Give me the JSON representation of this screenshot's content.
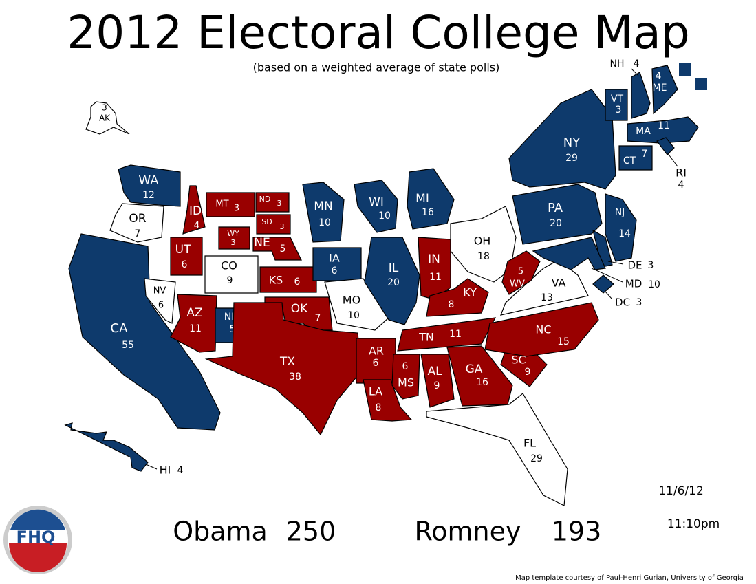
{
  "header": {
    "title": "2012 Electoral College Map",
    "subtitle": "(based on a weighted average of state polls)"
  },
  "states": [
    {
      "abbr": "WA",
      "votes": 12,
      "color": "#0e3a6c"
    },
    {
      "abbr": "OR",
      "votes": 7,
      "color": "#ffffff"
    },
    {
      "abbr": "CA",
      "votes": 55,
      "color": "#0e3a6c"
    },
    {
      "abbr": "NV",
      "votes": 6,
      "color": "#ffffff"
    },
    {
      "abbr": "ID",
      "votes": 4,
      "color": "#990000"
    },
    {
      "abbr": "MT",
      "votes": 3,
      "color": "#990000"
    },
    {
      "abbr": "WY",
      "votes": 3,
      "color": "#990000"
    },
    {
      "abbr": "UT",
      "votes": 6,
      "color": "#990000"
    },
    {
      "abbr": "CO",
      "votes": 9,
      "color": "#ffffff"
    },
    {
      "abbr": "AZ",
      "votes": 11,
      "color": "#990000"
    },
    {
      "abbr": "NM",
      "votes": 5,
      "color": "#0e3a6c"
    },
    {
      "abbr": "ND",
      "votes": 3,
      "color": "#990000"
    },
    {
      "abbr": "SD",
      "votes": 3,
      "color": "#990000"
    },
    {
      "abbr": "NE",
      "votes": 5,
      "color": "#990000"
    },
    {
      "abbr": "KS",
      "votes": 6,
      "color": "#990000"
    },
    {
      "abbr": "OK",
      "votes": 7,
      "color": "#990000"
    },
    {
      "abbr": "TX",
      "votes": 38,
      "color": "#990000"
    },
    {
      "abbr": "MN",
      "votes": 10,
      "color": "#0e3a6c"
    },
    {
      "abbr": "IA",
      "votes": 6,
      "color": "#0e3a6c"
    },
    {
      "abbr": "MO",
      "votes": 10,
      "color": "#ffffff"
    },
    {
      "abbr": "AR",
      "votes": 6,
      "color": "#990000"
    },
    {
      "abbr": "LA",
      "votes": 8,
      "color": "#990000"
    },
    {
      "abbr": "WI",
      "votes": 10,
      "color": "#0e3a6c"
    },
    {
      "abbr": "IL",
      "votes": 20,
      "color": "#0e3a6c"
    },
    {
      "abbr": "MI",
      "votes": 16,
      "color": "#0e3a6c"
    },
    {
      "abbr": "IN",
      "votes": 11,
      "color": "#990000"
    },
    {
      "abbr": "OH",
      "votes": 18,
      "color": "#ffffff"
    },
    {
      "abbr": "KY",
      "votes": 8,
      "color": "#990000"
    },
    {
      "abbr": "TN",
      "votes": 11,
      "color": "#990000"
    },
    {
      "abbr": "MS",
      "votes": 6,
      "color": "#990000"
    },
    {
      "abbr": "AL",
      "votes": 9,
      "color": "#990000"
    },
    {
      "abbr": "GA",
      "votes": 16,
      "color": "#990000"
    },
    {
      "abbr": "FL",
      "votes": 29,
      "color": "#ffffff"
    },
    {
      "abbr": "SC",
      "votes": 9,
      "color": "#990000"
    },
    {
      "abbr": "NC",
      "votes": 15,
      "color": "#990000"
    },
    {
      "abbr": "VA",
      "votes": 13,
      "color": "#ffffff"
    },
    {
      "abbr": "WV",
      "votes": 5,
      "color": "#990000"
    },
    {
      "abbr": "PA",
      "votes": 20,
      "color": "#0e3a6c"
    },
    {
      "abbr": "NY",
      "votes": 29,
      "color": "#0e3a6c"
    },
    {
      "abbr": "VT",
      "votes": 3,
      "color": "#0e3a6c"
    },
    {
      "abbr": "NH",
      "votes": 4,
      "color": "#0e3a6c"
    },
    {
      "abbr": "ME",
      "votes": 4,
      "color": "#0e3a6c"
    },
    {
      "abbr": "MA",
      "votes": 11,
      "color": "#0e3a6c"
    },
    {
      "abbr": "CT",
      "votes": 7,
      "color": "#0e3a6c"
    },
    {
      "abbr": "RI",
      "votes": 4,
      "color": "#0e3a6c"
    },
    {
      "abbr": "NJ",
      "votes": 14,
      "color": "#0e3a6c"
    },
    {
      "abbr": "DE",
      "votes": 3,
      "color": "#0e3a6c"
    },
    {
      "abbr": "MD",
      "votes": 10,
      "color": "#0e3a6c"
    },
    {
      "abbr": "DC",
      "votes": 3,
      "color": "#0e3a6c"
    },
    {
      "abbr": "AK",
      "votes": 3,
      "color": "#ffffff"
    },
    {
      "abbr": "HI",
      "votes": 4,
      "color": "#0e3a6c"
    }
  ],
  "candidates": [
    {
      "name": "Obama",
      "votes": 250
    },
    {
      "name": "Romney",
      "votes": 193
    }
  ],
  "date": "11/6/12",
  "time": "11:10pm",
  "logo": "FHQ",
  "credit": "Map template courtesy of Paul-Henri Gurian, University of Georgia"
}
